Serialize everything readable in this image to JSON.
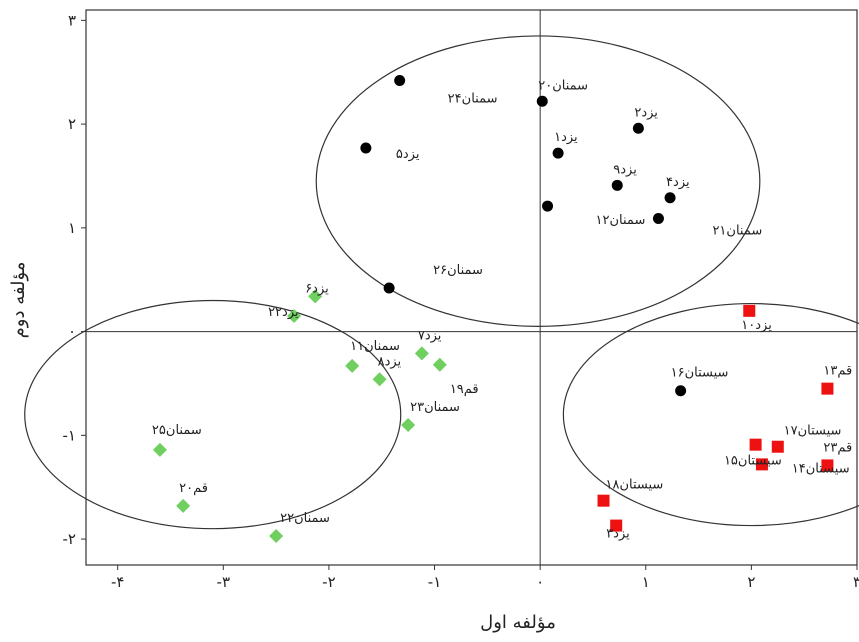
{
  "chart_data": {
    "type": "scatter",
    "xlabel": "مؤلفه اول",
    "ylabel": "مؤلفه دوم",
    "xlim": [
      -4.3,
      3.0
    ],
    "ylim": [
      -2.25,
      3.1
    ],
    "xticks": [
      {
        "v": -4,
        "label": "-۴"
      },
      {
        "v": -3,
        "label": "-۳"
      },
      {
        "v": -2,
        "label": "-۲"
      },
      {
        "v": -1,
        "label": "-۱"
      },
      {
        "v": 0,
        "label": "۰"
      },
      {
        "v": 1,
        "label": "۱"
      },
      {
        "v": 2,
        "label": "۲"
      },
      {
        "v": 3,
        "label": "۳"
      }
    ],
    "yticks": [
      {
        "v": -2,
        "label": "-۲"
      },
      {
        "v": -1,
        "label": "-۱"
      },
      {
        "v": 0,
        "label": "۰"
      },
      {
        "v": 1,
        "label": "۱"
      },
      {
        "v": 2,
        "label": "۲"
      },
      {
        "v": 3,
        "label": "۳"
      }
    ],
    "series": [
      {
        "marker": "circle",
        "color": "#000000",
        "points": [
          {
            "x": -1.33,
            "y": 2.42,
            "label": "سمنان۲۴"
          },
          {
            "x": 0.02,
            "y": 2.22,
            "label": "سمنان۲۰"
          },
          {
            "x": 0.93,
            "y": 1.96,
            "label": "یزد۲"
          },
          {
            "x": 0.17,
            "y": 1.72,
            "label": "یزد۱"
          },
          {
            "x": -1.65,
            "y": 1.77,
            "label": "یزد۵"
          },
          {
            "x": 0.73,
            "y": 1.41,
            "label": "یزد۹"
          },
          {
            "x": 1.23,
            "y": 1.29,
            "label": "یزد۴"
          },
          {
            "x": 0.07,
            "y": 1.21,
            "label": "سمنان۱۲"
          },
          {
            "x": 1.12,
            "y": 1.09,
            "label": "سمنان۲۱"
          },
          {
            "x": -1.43,
            "y": 0.42,
            "label": "سمنان۲۶"
          },
          {
            "x": 1.33,
            "y": -0.57,
            "label": "سیستان۱۶"
          }
        ]
      },
      {
        "marker": "diamond",
        "color": "#6fcf5f",
        "points": [
          {
            "x": -2.13,
            "y": 0.34,
            "label": "یزد۶"
          },
          {
            "x": -2.33,
            "y": 0.15,
            "label": "یزد۲۲"
          },
          {
            "x": -1.78,
            "y": -0.33,
            "label": "سمنان۱۱"
          },
          {
            "x": -1.52,
            "y": -0.46,
            "label": "یزد۸"
          },
          {
            "x": -1.12,
            "y": -0.21,
            "label": "یزد۷"
          },
          {
            "x": -0.95,
            "y": -0.32,
            "label": "قم۱۹"
          },
          {
            "x": -1.25,
            "y": -0.9,
            "label": "سمنان۲۳"
          },
          {
            "x": -3.6,
            "y": -1.14,
            "label": "سمنان۲۵"
          },
          {
            "x": -3.38,
            "y": -1.68,
            "label": "قم۲۰"
          },
          {
            "x": -2.5,
            "y": -1.97,
            "label": "سمنان۲۲"
          }
        ]
      },
      {
        "marker": "square",
        "color": "#ee1111",
        "points": [
          {
            "x": 1.98,
            "y": 0.2,
            "label": "یزد۱۰"
          },
          {
            "x": 2.72,
            "y": -0.55,
            "label": "قم۱۳"
          },
          {
            "x": 2.04,
            "y": -1.09,
            "label": "سیستان۱۷"
          },
          {
            "x": 2.25,
            "y": -1.11,
            "label": "سیستان۱۴"
          },
          {
            "x": 2.1,
            "y": -1.28,
            "label": "سیستان۱۵"
          },
          {
            "x": 2.72,
            "y": -1.29,
            "label": "قم۲۳"
          },
          {
            "x": 0.6,
            "y": -1.63,
            "label": "سیستان۱۸"
          },
          {
            "x": 0.72,
            "y": -1.87,
            "label": "یزد۳"
          }
        ]
      }
    ]
  }
}
